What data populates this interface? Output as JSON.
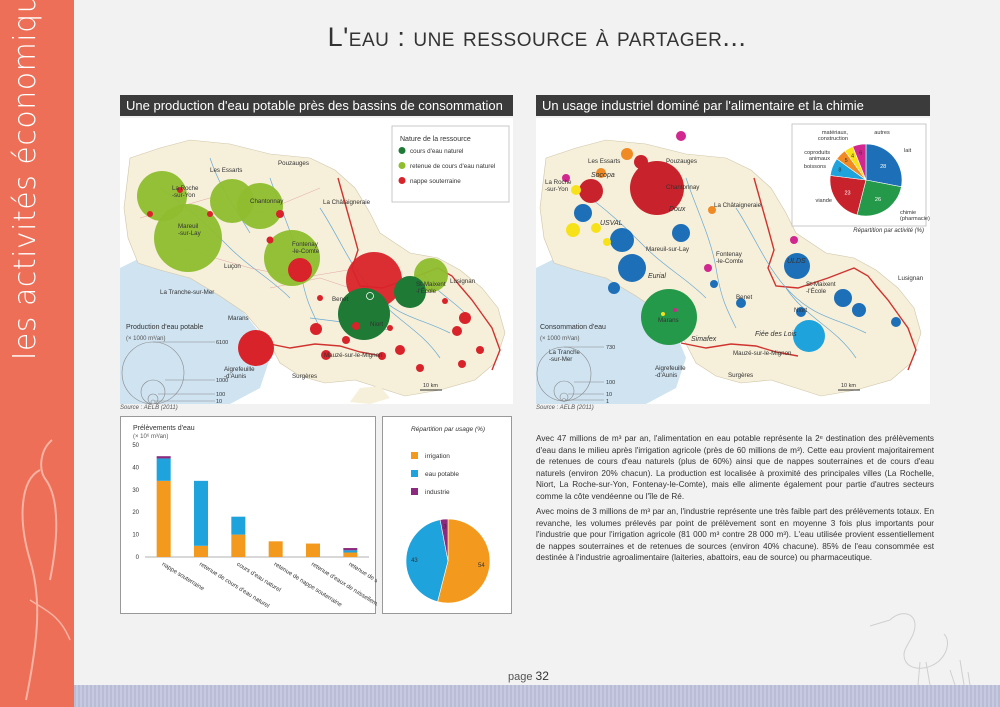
{
  "sidebar_label": "les activités économiques",
  "title": "L'eau : une ressource à partager...",
  "left": {
    "header": "Une production d'eau potable près des bassins de consommation",
    "legend_title": "Nature de la ressource",
    "legend_items": [
      {
        "label": "cours d'eau naturel",
        "color": "#1e7a35"
      },
      {
        "label": "retenue de cours d'eau naturel",
        "color": "#8ebd2e"
      },
      {
        "label": "nappe souterraine",
        "color": "#d9232a"
      }
    ],
    "towns": [
      "Pouzauges",
      "Les Essarts",
      "La Roche--sur-Yon",
      "Chantonnay",
      "La Châtaigneraie",
      "Mareuil--sur-Lay",
      "Fontenay--le-Comte",
      "Luçon",
      "St-Maixent--l'École",
      "Lusignan",
      "Benet",
      "La Tranche-sur-Mer",
      "Marans",
      "Niort",
      "Mauzé-sur-le-Mignon",
      "Aigrefeuille--d'Aunis",
      "Surgères"
    ],
    "size_legend_title": "Production d'eau potable",
    "size_legend_unit": "(× 1000 m³/an)",
    "size_legend_values": [
      "6100",
      "1000",
      "100",
      "10"
    ],
    "scale": "10 km",
    "source": "Source : AELB (2011)"
  },
  "right": {
    "header": "Un usage industriel dominé par l'alimentaire et la chimie",
    "towns": [
      "Les Essarts",
      "Pouzauges",
      "La Roche--sur-Yon",
      "Chantonnay",
      "La Châtaigneraie",
      "Mareuil-sur-Lay",
      "Fontenay--le-Comte",
      "St-Maixent--l'École",
      "Lusignan",
      "Benet",
      "Niort",
      "La Tranche--sur-Mer",
      "Marans",
      "Mauzé-sur-le-Mignon",
      "Aigrefeuille--d'Aunis",
      "Surgères"
    ],
    "companies": [
      "Socopa",
      "Doux",
      "USVAL",
      "Eurial",
      "ULDS",
      "Fiée des Lois",
      "Simafex"
    ],
    "size_legend_title": "Consommation d'eau",
    "size_legend_unit": "(× 1000 m³/an)",
    "size_legend_values": [
      "730",
      "100",
      "10",
      "1"
    ],
    "scale": "10 km",
    "source": "Source : AELB (2011)",
    "pie_caption": "Répartition par activité (%)",
    "pie_slices": [
      {
        "label": "lait",
        "value": 28,
        "color": "#1d6fb8"
      },
      {
        "label": "chimie (pharmacie)",
        "value": 26,
        "color": "#24994a"
      },
      {
        "label": "viande",
        "value": 23,
        "color": "#c8232c"
      },
      {
        "label": "boissons",
        "value": 8,
        "color": "#1fa3dc"
      },
      {
        "label": "coproduits animaux",
        "value": 5,
        "color": "#f08a24"
      },
      {
        "label": "matériaux, construction",
        "value": 4,
        "color": "#f7e21a"
      },
      {
        "label": "autres",
        "value": 6,
        "color": "#d1278e"
      }
    ]
  },
  "chart_data": [
    {
      "type": "bar",
      "title": "Prélèvements d'eau",
      "ylabel": "(× 10⁶ m³/an)",
      "ylim": [
        0,
        50
      ],
      "yticks": [
        "0",
        "10",
        "20",
        "30",
        "40",
        "50"
      ],
      "categories": [
        "nappe souterraine",
        "retenue de cours d'eau naturel",
        "cours d'eau naturel",
        "retenue de nappe souterraine",
        "retenue d'eaux de ruissellement",
        "retenue de source"
      ],
      "series": [
        {
          "name": "irrigation",
          "color": "#f39a1e",
          "values": [
            34,
            5,
            10,
            7,
            6,
            2
          ]
        },
        {
          "name": "eau potable",
          "color": "#1fa3dc",
          "values": [
            10,
            29,
            8,
            0,
            0,
            1
          ]
        },
        {
          "name": "industrie",
          "color": "#8b2a7e",
          "values": [
            1,
            0,
            0,
            0,
            0,
            1
          ]
        }
      ]
    },
    {
      "type": "pie",
      "title": "Répartition par usage (%)",
      "slices": [
        {
          "label": "irrigation",
          "value": 54,
          "color": "#f39a1e"
        },
        {
          "label": "eau potable",
          "value": 43,
          "color": "#1fa3dc"
        },
        {
          "label": "industrie",
          "value": 3,
          "color": "#8b2a7e"
        }
      ]
    }
  ],
  "text": {
    "p1": "Avec 47 millions de m³ par an, l'alimentation en eau potable représente la 2ᵉ destination des prélèvements d'eau dans le milieu après l'irrigation agricole (près de 60 millions de m³). Cette eau provient majoritairement de retenues de cours d'eau naturels (plus de 60%) ainsi que de nappes souterraines et de cours d'eau naturels (environ 20% chacun). La production est localisée à proximité des principales villes (La Rochelle, Niort, La Roche-sur-Yon, Fontenay-le-Comte), mais elle alimente également pour partie d'autres secteurs comme la côte vendéenne ou l'île de Ré.",
    "p2": "Avec moins de 3 millions de m³ par an, l'industrie représente une très faible part des prélèvements totaux. En revanche, les volumes prélevés par point de prélèvement sont en moyenne 3 fois plus importants pour l'industrie que pour l'irrigation agricole (81 000 m³ contre 28 000 m³). L'eau utilisée provient essentiellement de nappes souterraines et de retenues de sources (environ 40% chacune). 85% de l'eau consommée est destinée à l'industrie agroalimentaire (laiteries, abattoirs, eau de source) ou pharmaceutique."
  },
  "page_label": "page",
  "page_number": "32"
}
